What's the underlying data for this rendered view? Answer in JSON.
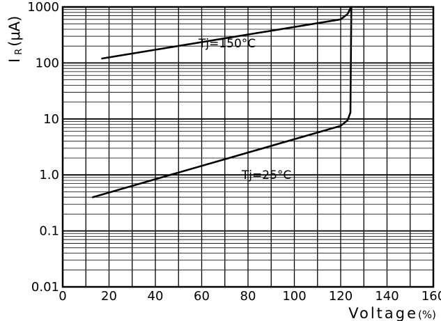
{
  "chart_data": {
    "type": "line",
    "xlabel": "Voltage",
    "xlabel_unit": "(%)",
    "ylabel_main": "I",
    "ylabel_sub": "R",
    "ylabel_unit": "(μA)",
    "xlim": [
      0,
      160
    ],
    "ylim": [
      0.01,
      1000
    ],
    "y_scale": "log",
    "grid": true,
    "x_ticks": [
      0,
      20,
      40,
      60,
      80,
      100,
      120,
      140,
      160
    ],
    "x_tick_labels": [
      "0",
      "20",
      "40",
      "60",
      "80",
      "100",
      "120",
      "140",
      "160"
    ],
    "y_ticks": [
      0.01,
      0.1,
      1,
      10,
      100,
      1000
    ],
    "y_tick_labels": [
      "0.01",
      "0.1",
      "1.0",
      "10",
      "100",
      "1000"
    ],
    "series": [
      {
        "x": [
          17,
          120,
          123,
          124.5,
          124.5
        ],
        "y": [
          120,
          600,
          750,
          1000,
          1400
        ]
      },
      {
        "x": [
          13,
          120,
          123,
          124.2,
          124.4,
          124.6
        ],
        "y": [
          0.4,
          7.5,
          9.5,
          13,
          100,
          1400
        ]
      }
    ],
    "annotations": [
      {
        "text": "Tj=150°C",
        "x": 71,
        "y": 190
      },
      {
        "text": "Tj=25°C",
        "x": 88,
        "y": 0.85
      }
    ]
  }
}
